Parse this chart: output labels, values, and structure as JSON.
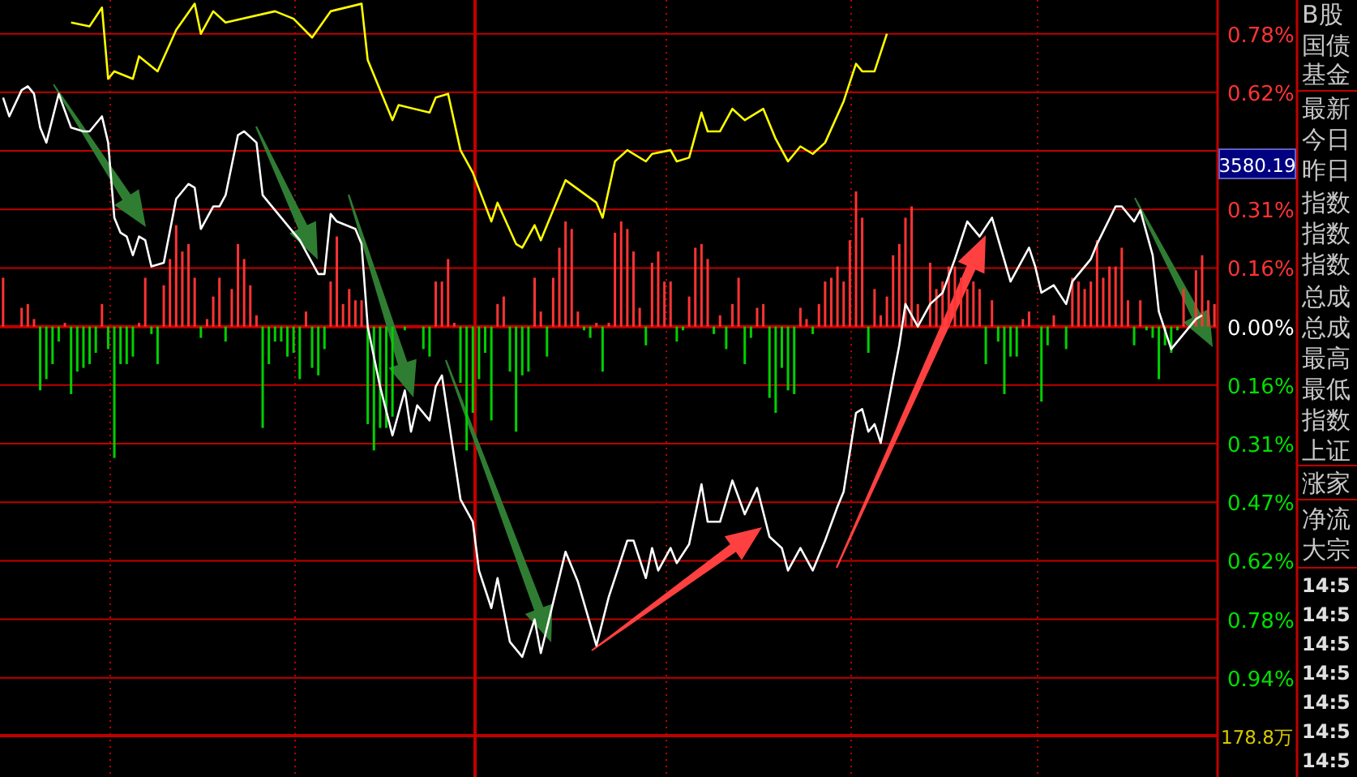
{
  "chart_data": {
    "type": "line",
    "ylim": [
      -1.2,
      0.87
    ],
    "categories": [
      null,
      null,
      null,
      null,
      null,
      null,
      null,
      null,
      null,
      null,
      null,
      null,
      null,
      null,
      null,
      null,
      null,
      null,
      null,
      null,
      null,
      null,
      null,
      null,
      null,
      null,
      null,
      null,
      null,
      null,
      null,
      null,
      null,
      null,
      null,
      null,
      null,
      null,
      null,
      null,
      null,
      null,
      null,
      null,
      null,
      null,
      null,
      null,
      null,
      null,
      null,
      null,
      null,
      null,
      null,
      null,
      null,
      null,
      null,
      null,
      null,
      null,
      null,
      null,
      null,
      null,
      null,
      null,
      null,
      null,
      null,
      null,
      null,
      null,
      null,
      null,
      null,
      null,
      null,
      null,
      null,
      null,
      null,
      null,
      null,
      null,
      null,
      null,
      null,
      null,
      null,
      null,
      null,
      null,
      null,
      null,
      null,
      null,
      null,
      null,
      null,
      null,
      null,
      null,
      null,
      null,
      null,
      null,
      null,
      null,
      null,
      null,
      null,
      null,
      null,
      null,
      null,
      null,
      null,
      null,
      null,
      null,
      null,
      null,
      null,
      null,
      null,
      null,
      null,
      null,
      null,
      null,
      null,
      null,
      null,
      null,
      null,
      null,
      null,
      null,
      null,
      null,
      null,
      null,
      null,
      null,
      null,
      null,
      null,
      null,
      null,
      null,
      null,
      null,
      null,
      null,
      null,
      null,
      null,
      null,
      null,
      null,
      null,
      null,
      null,
      null,
      null,
      null,
      null,
      null,
      null,
      null,
      null,
      null,
      null,
      null,
      null,
      null,
      null,
      null,
      null,
      null,
      null,
      null,
      null,
      null,
      null,
      null,
      null,
      null,
      null,
      null,
      null,
      null,
      null,
      null,
      null
    ],
    "yticks": [
      {
        "value": 0.78,
        "label": "0.78%"
      },
      {
        "value": 0.624,
        "label": "0.62%"
      },
      {
        "value": 0.468,
        "label": null
      },
      {
        "value": 0.312,
        "label": "0.31%"
      },
      {
        "value": 0.156,
        "label": "0.16%"
      },
      {
        "value": 0,
        "label": "0.00%"
      },
      {
        "value": -0.156,
        "label": "0.16%"
      },
      {
        "value": -0.312,
        "label": "0.31%"
      },
      {
        "value": -0.468,
        "label": "0.47%"
      },
      {
        "value": -0.624,
        "label": "0.62%"
      },
      {
        "value": -0.78,
        "label": "0.78%"
      },
      {
        "value": -0.936,
        "label": "0.94%"
      }
    ],
    "tick_labels": "y",
    "grid": "y",
    "marker": "none",
    "line_style": "solid",
    "ref_lines": [
      {
        "axis": "y",
        "value": -1.09,
        "label": "178.8万",
        "color": "#c00000",
        "line_style": "solid"
      }
    ],
    "annotations": [
      "3580.19",
      "B股",
      "国债",
      "基金",
      "最新",
      "今日",
      "昨日",
      "指数",
      "指数",
      "指数",
      "总成",
      "总成",
      "最高",
      "最低",
      "指数",
      "上证",
      "涨家",
      "净流",
      "大宗",
      "14:5",
      "14:5",
      "14:5",
      "14:5",
      "14:5",
      "14:5",
      "14:5"
    ],
    "series": [
      {
        "type": "bar",
        "values": [
          0.13,
          0,
          0,
          0.05,
          0.06,
          0.02,
          -0.17,
          -0.14,
          -0.1,
          -0.04,
          0.01,
          -0.18,
          -0.12,
          -0.11,
          -0.1,
          -0.07,
          0.06,
          -0.06,
          -0.35,
          -0.1,
          -0.1,
          -0.08,
          0.01,
          0.13,
          -0.02,
          -0.1,
          0.11,
          0.18,
          0.27,
          0.2,
          0.22,
          0.13,
          -0.03,
          0.02,
          0.08,
          0.13,
          -0.04,
          0.1,
          0.22,
          0.18,
          0.11,
          0.03,
          -0.27,
          -0.1,
          -0.04,
          -0.04,
          -0.08,
          -0.07,
          -0.14,
          0.04,
          -0.11,
          -0.13,
          -0.06,
          0.12,
          0.24,
          0.06,
          0.1,
          0.07,
          0.07,
          -0.26,
          -0.33,
          -0.27,
          -0.27,
          -0.24,
          0,
          -0.01,
          0,
          0,
          -0.06,
          -0.08,
          0.12,
          0.12,
          0.18,
          0.01,
          -0.15,
          -0.33,
          -0.23,
          -0.14,
          -0.07,
          -0.25,
          0.06,
          0.08,
          -0.12,
          -0.28,
          -0.13,
          -0.12,
          0.13,
          0.04,
          -0.08,
          0.13,
          0.21,
          0.28,
          0.26,
          0.04,
          -0.01,
          -0.03,
          0.01,
          -0.12,
          0.01,
          0.25,
          0.28,
          0.26,
          0.2,
          0.05,
          -0.05,
          0.17,
          0.2,
          0.12,
          0.12,
          -0.04,
          -0.01,
          0.08,
          0.21,
          0.22,
          0.18,
          -0.02,
          0.03,
          -0.06,
          0.06,
          0.13,
          -0.1,
          -0.03,
          0.05,
          0.06,
          -0.19,
          -0.23,
          -0.11,
          -0.17,
          -0.18,
          0.05,
          0.02,
          -0.02,
          0.06,
          0.12,
          0.13,
          0.16,
          0.12,
          0.23,
          0.36,
          0.29,
          -0.07,
          0.1,
          0.03,
          0.08,
          0.19,
          0.22,
          0.29,
          0.32,
          0.06,
          0,
          0.17,
          0.1,
          0.12,
          0.16,
          0.16,
          0.13,
          0.1,
          0.12,
          0.1,
          -0.1,
          0.07,
          -0.04,
          -0.18,
          -0.08,
          -0.08,
          0.02,
          0.04,
          0,
          -0.2,
          -0.05,
          0.03,
          0,
          -0.06,
          0.13,
          0.12,
          0.1,
          0.12,
          0.23,
          0.13,
          0.16,
          0.16,
          0.21,
          0.07,
          -0.05,
          0.07,
          -0.01,
          -0.03,
          -0.14,
          -0.05,
          -0.07,
          -0.01,
          0.1,
          0,
          0.15,
          0.19,
          0.07,
          0.06
        ],
        "colors": [
          "#ff3333",
          "#ff3333",
          "#ff3333",
          "#ff3333",
          "#ff3333",
          "#ff3333",
          "#00d000",
          "#00d000",
          "#00d000",
          "#00d000",
          "#ff3333",
          "#00d000",
          "#00d000",
          "#00d000",
          "#00d000",
          "#00d000",
          "#ff3333",
          "#00d000",
          "#00d000",
          "#00d000",
          "#00d000",
          "#00d000",
          "#ff3333",
          "#ff3333",
          "#00d000",
          "#00d000",
          "#ff3333",
          "#ff3333",
          "#ff3333",
          "#ff3333",
          "#ff3333",
          "#ff3333",
          "#00d000",
          "#ff3333",
          "#ff3333",
          "#ff3333",
          "#00d000",
          "#ff3333",
          "#ff3333",
          "#ff3333",
          "#ff3333",
          "#ff3333",
          "#00d000",
          "#00d000",
          "#00d000",
          "#00d000",
          "#00d000",
          "#00d000",
          "#00d000",
          "#ff3333",
          "#00d000",
          "#00d000",
          "#00d000",
          "#ff3333",
          "#ff3333",
          "#ff3333",
          "#ff3333",
          "#ff3333",
          "#ff3333",
          "#00d000",
          "#00d000",
          "#00d000",
          "#00d000",
          "#00d000",
          "#ff3333",
          "#00d000",
          "#ff3333",
          "#ff3333",
          "#00d000",
          "#00d000",
          "#ff3333",
          "#ff3333",
          "#ff3333",
          "#ff3333",
          "#00d000",
          "#00d000",
          "#00d000",
          "#00d000",
          "#00d000",
          "#00d000",
          "#ff3333",
          "#ff3333",
          "#00d000",
          "#00d000",
          "#00d000",
          "#00d000",
          "#ff3333",
          "#ff3333",
          "#00d000",
          "#ff3333",
          "#ff3333",
          "#ff3333",
          "#ff3333",
          "#ff3333",
          "#00d000",
          "#00d000",
          "#ff3333",
          "#00d000",
          "#ff3333",
          "#ff3333",
          "#ff3333",
          "#ff3333",
          "#ff3333",
          "#ff3333",
          "#00d000",
          "#ff3333",
          "#ff3333",
          "#ff3333",
          "#ff3333",
          "#00d000",
          "#00d000",
          "#ff3333",
          "#ff3333",
          "#ff3333",
          "#ff3333",
          "#00d000",
          "#ff3333",
          "#00d000",
          "#ff3333",
          "#ff3333",
          "#00d000",
          "#00d000",
          "#ff3333",
          "#ff3333",
          "#00d000",
          "#00d000",
          "#00d000",
          "#00d000",
          "#00d000",
          "#ff3333",
          "#ff3333",
          "#00d000",
          "#ff3333",
          "#ff3333",
          "#ff3333",
          "#ff3333",
          "#ff3333",
          "#ff3333",
          "#ff3333",
          "#ff3333",
          "#00d000",
          "#ff3333",
          "#ff3333",
          "#ff3333",
          "#ff3333",
          "#ff3333",
          "#ff3333",
          "#ff3333",
          "#ff3333",
          "#ff3333",
          "#ff3333",
          "#ff3333",
          "#ff3333",
          "#ff3333",
          "#ff3333",
          "#ff3333",
          "#ff3333",
          "#ff3333",
          "#ff3333",
          "#00d000",
          "#ff3333",
          "#00d000",
          "#00d000",
          "#00d000",
          "#00d000",
          "#ff3333",
          "#ff3333",
          "#ff3333",
          "#00d000",
          "#00d000",
          "#ff3333",
          "#ff3333",
          "#00d000",
          "#ff3333",
          "#ff3333",
          "#ff3333",
          "#ff3333",
          "#ff3333",
          "#ff3333",
          "#ff3333",
          "#ff3333",
          "#ff3333",
          "#ff3333",
          "#00d000",
          "#ff3333",
          "#00d000",
          "#00d000",
          "#00d000",
          "#00d000",
          "#00d000",
          "#00d000",
          "#ff3333",
          "#ff3333",
          "#ff3333",
          "#ff3333",
          "#ff3333",
          "#ff3333"
        ]
      },
      {
        "color": "#ffff00",
        "values": [
          null,
          null,
          null,
          null,
          null,
          null,
          null,
          null,
          null,
          null,
          null,
          0.81,
          null,
          null,
          0.8,
          null,
          0.85,
          0.66,
          0.68,
          null,
          null,
          0.66,
          0.72,
          null,
          null,
          0.68,
          null,
          null,
          0.79,
          null,
          null,
          0.86,
          0.78,
          null,
          0.84,
          null,
          0.81,
          null,
          null,
          null,
          null,
          null,
          null,
          null,
          0.84,
          null,
          null,
          0.82,
          null,
          null,
          0.77,
          null,
          null,
          0.84,
          null,
          null,
          null,
          null,
          0.86,
          0.71,
          null,
          null,
          null,
          0.55,
          0.59,
          null,
          null,
          null,
          null,
          0.57,
          0.61,
          null,
          0.62,
          null,
          0.47,
          null,
          0.41,
          null,
          null,
          0.28,
          0.33,
          null,
          null,
          0.22,
          0.21,
          null,
          0.27,
          0.23,
          null,
          null,
          null,
          0.39,
          null,
          null,
          null,
          null,
          0.33,
          0.29,
          null,
          0.44,
          null,
          0.47,
          null,
          null,
          0.44,
          0.46,
          null,
          null,
          0.47,
          0.44,
          null,
          0.45,
          null,
          0.57,
          0.52,
          null,
          0.52,
          null,
          0.58,
          null,
          0.55,
          null,
          null,
          0.58,
          null,
          0.5,
          null,
          0.44,
          null,
          0.48,
          null,
          0.46,
          null,
          0.49,
          null,
          null,
          0.6,
          null,
          0.7,
          0.68,
          null,
          0.68,
          null,
          0.78,
          null,
          null,
          null,
          null,
          null,
          null,
          null,
          null,
          null,
          null,
          null,
          null,
          null,
          null,
          null,
          null,
          null,
          null,
          null,
          null,
          null,
          null,
          null,
          null,
          null,
          null,
          null,
          null,
          null,
          null,
          null,
          null,
          null,
          null,
          null,
          null,
          null,
          null,
          null,
          null,
          null,
          null,
          null,
          null,
          null,
          null,
          null,
          null,
          null,
          null,
          null,
          null,
          null
        ]
      },
      {
        "color": "#ffffff",
        "values": [
          0.61,
          0.56,
          null,
          0.63,
          0.64,
          0.62,
          0.53,
          0.49,
          null,
          0.62,
          null,
          0.53,
          null,
          0.52,
          0.52,
          null,
          0.56,
          0.49,
          0.29,
          0.25,
          0.24,
          0.19,
          0.24,
          0.23,
          0.16,
          null,
          0.17,
          null,
          0.34,
          null,
          0.38,
          0.37,
          0.26,
          null,
          0.32,
          0.32,
          0.35,
          null,
          0.51,
          0.52,
          null,
          0.49,
          0.35,
          null,
          null,
          0.29,
          null,
          null,
          0.23,
          null,
          null,
          0.14,
          0.14,
          0.3,
          0.28,
          null,
          null,
          0.26,
          0.22,
          0.0,
          null,
          -0.16,
          null,
          -0.29,
          null,
          -0.17,
          -0.28,
          -0.21,
          null,
          -0.25,
          -0.16,
          -0.13,
          null,
          null,
          -0.46,
          null,
          -0.52,
          -0.65,
          null,
          -0.75,
          -0.67,
          null,
          -0.84,
          null,
          -0.88,
          null,
          -0.78,
          -0.87,
          null,
          null,
          null,
          -0.6,
          null,
          -0.68,
          null,
          null,
          -0.85,
          null,
          -0.72,
          null,
          null,
          -0.57,
          -0.57,
          null,
          -0.67,
          -0.59,
          -0.65,
          null,
          -0.59,
          -0.63,
          null,
          -0.58,
          null,
          -0.42,
          -0.52,
          null,
          -0.52,
          null,
          -0.41,
          null,
          -0.5,
          null,
          -0.43,
          null,
          -0.56,
          null,
          -0.59,
          -0.65,
          null,
          -0.59,
          null,
          -0.65,
          null,
          -0.57,
          null,
          -0.48,
          -0.44,
          null,
          -0.23,
          -0.22,
          -0.28,
          -0.26,
          -0.31,
          null,
          null,
          -0.05,
          0.06,
          null,
          0.0,
          null,
          0.06,
          null,
          0.09,
          null,
          0.18,
          null,
          0.28,
          null,
          0.24,
          null,
          0.29,
          null,
          null,
          0.12,
          null,
          null,
          0.21,
          0.16,
          0.09,
          null,
          0.11,
          null,
          0.06,
          0.12,
          null,
          null,
          0.18,
          0.22,
          null,
          null,
          0.32,
          0.32,
          null,
          0.28,
          0.31,
          null,
          0.19,
          0.04,
          null,
          -0.06,
          null,
          -0.02,
          null,
          0.02,
          0.03,
          null,
          null
        ]
      }
    ]
  }
}
